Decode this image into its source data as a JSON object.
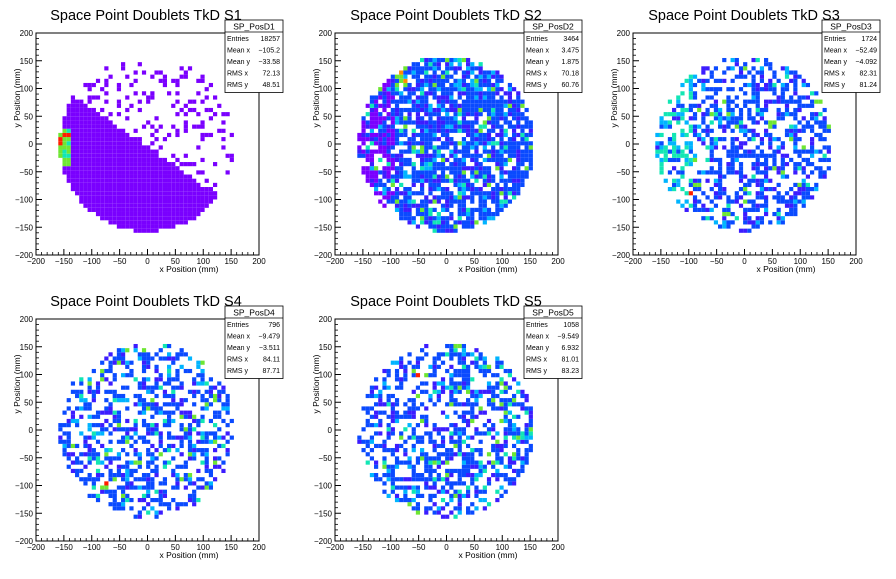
{
  "chart_data": [
    {
      "type": "heatmap",
      "title": "Space Point Doublets TkD S1",
      "xlabel": "x Position (mm)",
      "ylabel": "y Position (mm)",
      "xlim": [
        -200,
        200
      ],
      "ylim": [
        -200,
        200
      ],
      "x_ticks": [
        "−200",
        "−150",
        "−100",
        "−50",
        "0",
        "50",
        "100",
        "150",
        "200"
      ],
      "y_ticks": [
        "−200",
        "−150",
        "−100",
        "−50",
        "0",
        "50",
        "100",
        "150",
        "200"
      ],
      "stats": {
        "name": "SP_PosD1",
        "rows": [
          {
            "label": "Entries",
            "value": "18257"
          },
          {
            "label": "Mean x",
            "value": "−105.2"
          },
          {
            "label": "Mean y",
            "value": "−33.58"
          },
          {
            "label": "RMS x",
            "value": "72.13"
          },
          {
            "label": "RMS y",
            "value": "48.51"
          }
        ]
      },
      "distribution": {
        "profile": "s1",
        "seed": 11,
        "density": 0.55,
        "hot_spot": [
          -155,
          15
        ]
      }
    },
    {
      "type": "heatmap",
      "title": "Space Point Doublets TkD S2",
      "xlabel": "x Position (mm)",
      "ylabel": "y Position (mm)",
      "xlim": [
        -200,
        200
      ],
      "ylim": [
        -200,
        200
      ],
      "x_ticks": [
        "−200",
        "−150",
        "−100",
        "−50",
        "0",
        "50",
        "100",
        "150",
        "200"
      ],
      "y_ticks": [
        "−200",
        "−150",
        "−100",
        "−50",
        "0",
        "50",
        "100",
        "150",
        "200"
      ],
      "stats": {
        "name": "SP_PosD2",
        "rows": [
          {
            "label": "Entries",
            "value": "3464"
          },
          {
            "label": "Mean x",
            "value": "3.475"
          },
          {
            "label": "Mean y",
            "value": "1.875"
          },
          {
            "label": "RMS x",
            "value": "70.18"
          },
          {
            "label": "RMS y",
            "value": "60.76"
          }
        ]
      },
      "distribution": {
        "profile": "s2",
        "seed": 23,
        "density": 0.78,
        "hot_spot": [
          -80,
          120
        ]
      }
    },
    {
      "type": "heatmap",
      "title": "Space Point Doublets TkD S3",
      "xlabel": "x Position (mm)",
      "ylabel": "y Position (mm)",
      "xlim": [
        -200,
        200
      ],
      "ylim": [
        -200,
        200
      ],
      "x_ticks": [
        "−200",
        "−150",
        "−100",
        "−50",
        "0",
        "50",
        "100",
        "150",
        "200"
      ],
      "y_ticks": [
        "−200",
        "−150",
        "−100",
        "−50",
        "0",
        "50",
        "100",
        "150",
        "200"
      ],
      "stats": {
        "name": "SP_PosD3",
        "rows": [
          {
            "label": "Entries",
            "value": "1724"
          },
          {
            "label": "Mean x",
            "value": "−52.49"
          },
          {
            "label": "Mean y",
            "value": "−4.092"
          },
          {
            "label": "RMS x",
            "value": "82.31"
          },
          {
            "label": "RMS y",
            "value": "81.24"
          }
        ]
      },
      "distribution": {
        "profile": "s3",
        "seed": 37,
        "density": 0.5,
        "hot_spot": [
          -100,
          -90
        ]
      }
    },
    {
      "type": "heatmap",
      "title": "Space Point Doublets TkD S4",
      "xlabel": "x Position (mm)",
      "ylabel": "y Position (mm)",
      "xlim": [
        -200,
        200
      ],
      "ylim": [
        -200,
        200
      ],
      "x_ticks": [
        "−200",
        "−150",
        "−100",
        "−50",
        "0",
        "50",
        "100",
        "150",
        "200"
      ],
      "y_ticks": [
        "−200",
        "−150",
        "−100",
        "−50",
        "0",
        "50",
        "100",
        "150",
        "200"
      ],
      "stats": {
        "name": "SP_PosD4",
        "rows": [
          {
            "label": "Entries",
            "value": "796"
          },
          {
            "label": "Mean x",
            "value": "−9.479"
          },
          {
            "label": "Mean y",
            "value": "−3.511"
          },
          {
            "label": "RMS x",
            "value": "84.11"
          },
          {
            "label": "RMS y",
            "value": "87.71"
          }
        ]
      },
      "distribution": {
        "profile": "uniform",
        "seed": 53,
        "density": 0.45,
        "hot_spot": [
          -80,
          -95
        ]
      }
    },
    {
      "type": "heatmap",
      "title": "Space Point Doublets TkD S5",
      "xlabel": "x Position (mm)",
      "ylabel": "y Position (mm)",
      "xlim": [
        -200,
        200
      ],
      "ylim": [
        -200,
        200
      ],
      "x_ticks": [
        "−200",
        "−150",
        "−100",
        "−50",
        "0",
        "50",
        "100",
        "150",
        "200"
      ],
      "y_ticks": [
        "−200",
        "−150",
        "−100",
        "−50",
        "0",
        "50",
        "100",
        "150",
        "200"
      ],
      "stats": {
        "name": "SP_PosD5",
        "rows": [
          {
            "label": "Entries",
            "value": "1058"
          },
          {
            "label": "Mean x",
            "value": "−9.549"
          },
          {
            "label": "Mean y",
            "value": "6.932"
          },
          {
            "label": "RMS x",
            "value": "81.01"
          },
          {
            "label": "RMS y",
            "value": "83.23"
          }
        ]
      },
      "distribution": {
        "profile": "uniform",
        "seed": 71,
        "density": 0.5,
        "hot_spot": [
          -60,
          100
        ]
      }
    }
  ],
  "colors": {
    "palette": [
      "#7a00ff",
      "#3c1cff",
      "#0a4aff",
      "#00b4ff",
      "#12e6b4",
      "#6ee632",
      "#d7ea1e",
      "#ff8c00",
      "#ff1e00"
    ],
    "axis": "#000000",
    "background": "#ffffff"
  }
}
